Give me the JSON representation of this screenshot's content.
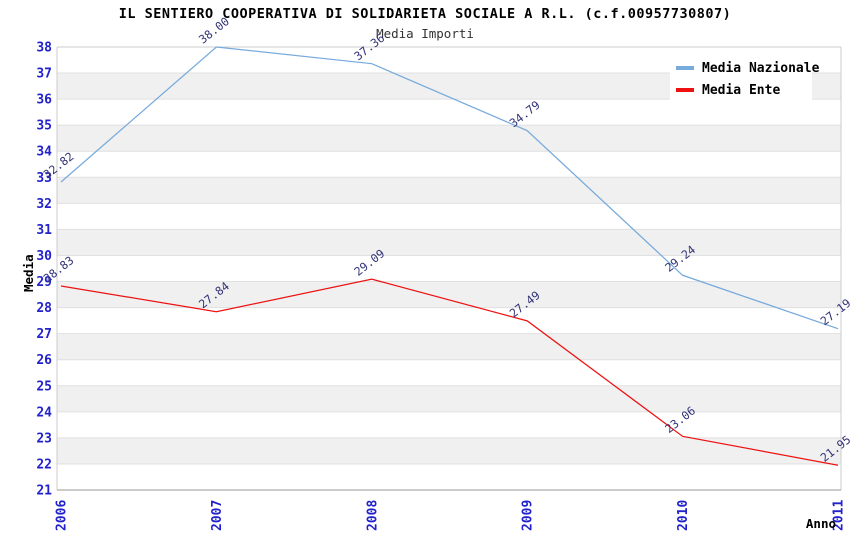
{
  "chart_data": {
    "type": "line",
    "title": "IL SENTIERO COOPERATIVA DI SOLIDARIETA SOCIALE A R.L. (c.f.00957730807)",
    "subtitle": "Media Importi",
    "xlabel": "Anno",
    "ylabel": "Media",
    "x": [
      "2006",
      "2007",
      "2008",
      "2009",
      "2010",
      "2011"
    ],
    "ylim": [
      21,
      38
    ],
    "ytick_step": 1,
    "grid": "horizontal-bands",
    "legend_position": "top-right",
    "series": [
      {
        "name": "Media Nazionale",
        "color": "#77aadd",
        "values": [
          32.82,
          38.0,
          37.36,
          34.79,
          29.24,
          27.19
        ],
        "labels": [
          "32.82",
          "38.00",
          "37.36",
          "34.79",
          "29.24",
          "27.19"
        ]
      },
      {
        "name": "Media Ente",
        "color": "#ee1111",
        "values": [
          28.83,
          27.84,
          29.09,
          27.49,
          23.06,
          21.95
        ],
        "labels": [
          "28.83",
          "27.84",
          "29.09",
          "27.49",
          "23.06",
          "21.95"
        ]
      }
    ],
    "colors": {
      "axis_text": "#2222cc",
      "data_label": "#333377",
      "band": "#f0f0f0",
      "grid_line": "#e0e0e0",
      "plot_border": "#cccccc",
      "axis_line": "#999999",
      "background": "#ffffff"
    }
  }
}
